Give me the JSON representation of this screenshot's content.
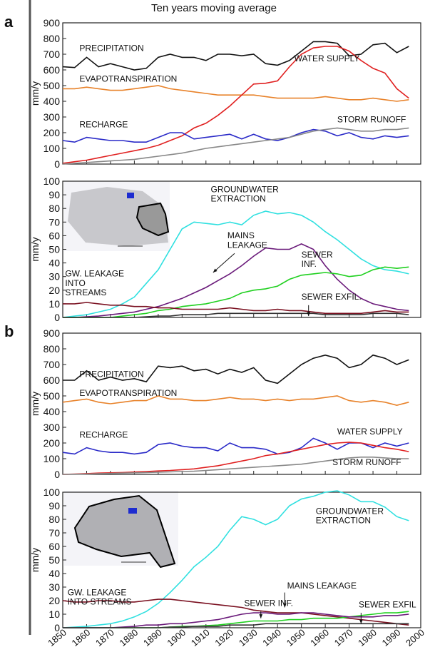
{
  "title": "Ten years moving average",
  "panels": [
    "a",
    "b"
  ],
  "chart_data": [
    {
      "type": "line",
      "ylabel": "mm/y",
      "x": [
        1850,
        1855,
        1860,
        1865,
        1870,
        1875,
        1880,
        1885,
        1890,
        1895,
        1900,
        1905,
        1910,
        1915,
        1920,
        1925,
        1930,
        1935,
        1940,
        1945,
        1950,
        1955,
        1960,
        1965,
        1970,
        1975,
        1980,
        1985,
        1990,
        1995
      ],
      "xlim": [
        1850,
        2000
      ],
      "xticks": [
        1850,
        1860,
        1870,
        1880,
        1890,
        1900,
        1910,
        1920,
        1930,
        1940,
        1950,
        1960,
        1970,
        1980,
        1990,
        2000
      ],
      "ylim": [
        0,
        900
      ],
      "yticks": [
        0,
        100,
        200,
        300,
        400,
        500,
        600,
        700,
        800,
        900
      ],
      "series": [
        {
          "name": "PRECIPITATION",
          "color": "#111111",
          "values": [
            620,
            615,
            680,
            620,
            640,
            620,
            600,
            610,
            680,
            700,
            680,
            680,
            660,
            700,
            700,
            690,
            700,
            640,
            630,
            660,
            720,
            780,
            780,
            770,
            690,
            700,
            760,
            770,
            710,
            750
          ]
        },
        {
          "name": "EVAPOTRANSPIRATION",
          "color": "#e8822a",
          "values": [
            480,
            480,
            490,
            480,
            470,
            470,
            480,
            490,
            500,
            480,
            470,
            460,
            450,
            440,
            440,
            440,
            440,
            430,
            420,
            420,
            420,
            420,
            430,
            420,
            410,
            410,
            420,
            410,
            400,
            410
          ]
        },
        {
          "name": "WATER SUPPLY",
          "color": "#e02020",
          "values": [
            5,
            15,
            25,
            40,
            55,
            70,
            85,
            100,
            120,
            150,
            180,
            230,
            260,
            310,
            370,
            440,
            510,
            515,
            530,
            620,
            700,
            740,
            750,
            750,
            720,
            660,
            610,
            580,
            480,
            420
          ]
        },
        {
          "name": "RECHARGE",
          "color": "#2a2ac8",
          "values": [
            150,
            140,
            170,
            160,
            150,
            150,
            140,
            140,
            170,
            200,
            200,
            160,
            170,
            180,
            190,
            160,
            190,
            160,
            150,
            170,
            200,
            220,
            210,
            180,
            200,
            170,
            160,
            180,
            170,
            180
          ]
        },
        {
          "name": "STORM RUNOFF",
          "color": "#888888",
          "values": [
            0,
            5,
            10,
            15,
            20,
            25,
            30,
            40,
            50,
            60,
            70,
            85,
            100,
            110,
            120,
            130,
            140,
            150,
            160,
            170,
            190,
            210,
            220,
            230,
            220,
            210,
            210,
            220,
            220,
            230
          ]
        }
      ]
    },
    {
      "type": "line",
      "ylabel": "mm/y",
      "x": [
        1850,
        1855,
        1860,
        1865,
        1870,
        1875,
        1880,
        1885,
        1890,
        1895,
        1900,
        1905,
        1910,
        1915,
        1920,
        1925,
        1930,
        1935,
        1940,
        1945,
        1950,
        1955,
        1960,
        1965,
        1970,
        1975,
        1980,
        1985,
        1990,
        1995
      ],
      "xlim": [
        1850,
        2000
      ],
      "xticks": [
        1850,
        1860,
        1870,
        1880,
        1890,
        1900,
        1910,
        1920,
        1930,
        1940,
        1950,
        1960,
        1970,
        1980,
        1990,
        2000
      ],
      "ylim": [
        0,
        100
      ],
      "yticks": [
        0,
        10,
        20,
        30,
        40,
        50,
        60,
        70,
        80,
        90,
        100
      ],
      "series": [
        {
          "name": "GROUNDWATER\nEXTRACTION",
          "color": "#30e0e0",
          "values": [
            0,
            1,
            2,
            4,
            6,
            10,
            15,
            25,
            35,
            50,
            65,
            70,
            69,
            68,
            70,
            68,
            75,
            78,
            76,
            77,
            75,
            70,
            63,
            57,
            50,
            43,
            38,
            35,
            34,
            32
          ]
        },
        {
          "name": "MAINS\nLEAKAGE",
          "color": "#6a1a7a",
          "values": [
            0,
            0,
            0.5,
            1,
            2,
            3,
            4,
            6,
            8,
            11,
            14,
            18,
            22,
            27,
            32,
            38,
            45,
            51,
            50,
            50,
            54,
            50,
            38,
            28,
            20,
            14,
            10,
            8,
            6,
            5
          ]
        },
        {
          "name": "SEWER\nINF.",
          "color": "#20d020",
          "values": [
            0,
            0,
            0,
            0,
            0,
            1,
            2,
            3,
            5,
            6,
            8,
            9,
            10,
            12,
            14,
            18,
            20,
            21,
            23,
            28,
            31,
            32,
            33,
            32,
            30,
            31,
            35,
            37,
            36,
            37
          ]
        },
        {
          "name": "GW. LEAKAGE\nINTO\nSTREAMS",
          "color": "#7a1020",
          "values": [
            10,
            10,
            11,
            10,
            9,
            9,
            8,
            8,
            7,
            7,
            6,
            6,
            6,
            6,
            7,
            6,
            5,
            5,
            6,
            5,
            5,
            4,
            3,
            3,
            3,
            3,
            4,
            5,
            4,
            4
          ]
        },
        {
          "name": "SEWER EXFIL.",
          "color": "#333333",
          "values": [
            0,
            0,
            0,
            0,
            0,
            0,
            0,
            0.5,
            1,
            1,
            2,
            2,
            2,
            3,
            3,
            3,
            3,
            3,
            3,
            3,
            3,
            3,
            2,
            2,
            2,
            2,
            3,
            3,
            3,
            2
          ]
        }
      ]
    },
    {
      "type": "line",
      "ylabel": "mm/y",
      "x": [
        1850,
        1855,
        1860,
        1865,
        1870,
        1875,
        1880,
        1885,
        1890,
        1895,
        1900,
        1905,
        1910,
        1915,
        1920,
        1925,
        1930,
        1935,
        1940,
        1945,
        1950,
        1955,
        1960,
        1965,
        1970,
        1975,
        1980,
        1985,
        1990,
        1995
      ],
      "xlim": [
        1850,
        2000
      ],
      "xticks": [
        1850,
        1860,
        1870,
        1880,
        1890,
        1900,
        1910,
        1920,
        1930,
        1940,
        1950,
        1960,
        1970,
        1980,
        1990,
        2000
      ],
      "ylim": [
        0,
        900
      ],
      "yticks": [
        0,
        100,
        200,
        300,
        400,
        500,
        600,
        700,
        800,
        900
      ],
      "series": [
        {
          "name": "PRECIPITATION",
          "color": "#111111",
          "values": [
            600,
            600,
            660,
            600,
            620,
            600,
            610,
            590,
            690,
            680,
            690,
            660,
            670,
            640,
            670,
            650,
            680,
            600,
            580,
            640,
            700,
            740,
            760,
            740,
            680,
            700,
            760,
            740,
            700,
            730
          ]
        },
        {
          "name": "EVAPOTRANSPIRATION",
          "color": "#e8822a",
          "values": [
            460,
            470,
            480,
            460,
            450,
            460,
            470,
            470,
            500,
            480,
            480,
            470,
            470,
            480,
            490,
            480,
            480,
            470,
            480,
            470,
            480,
            480,
            490,
            500,
            470,
            460,
            470,
            460,
            440,
            460
          ]
        },
        {
          "name": "RECHARGE",
          "color": "#2a2ac8",
          "values": [
            140,
            130,
            170,
            150,
            140,
            140,
            130,
            140,
            190,
            200,
            180,
            170,
            170,
            150,
            200,
            170,
            170,
            160,
            130,
            140,
            170,
            230,
            200,
            160,
            200,
            200,
            170,
            200,
            180,
            200
          ]
        },
        {
          "name": "WATER SUPPLY",
          "color": "#e02020",
          "values": [
            0,
            2,
            5,
            8,
            10,
            12,
            15,
            18,
            22,
            25,
            30,
            35,
            45,
            55,
            70,
            85,
            100,
            120,
            130,
            145,
            160,
            175,
            190,
            200,
            205,
            200,
            185,
            170,
            160,
            145
          ]
        },
        {
          "name": "STORM RUNOFF",
          "color": "#888888",
          "values": [
            0,
            1,
            2,
            4,
            6,
            8,
            10,
            12,
            14,
            16,
            18,
            20,
            25,
            30,
            35,
            40,
            45,
            50,
            55,
            60,
            65,
            75,
            85,
            95,
            105,
            110,
            110,
            105,
            100,
            100
          ]
        }
      ]
    },
    {
      "type": "line",
      "ylabel": "mm/y",
      "x": [
        1850,
        1855,
        1860,
        1865,
        1870,
        1875,
        1880,
        1885,
        1890,
        1895,
        1900,
        1905,
        1910,
        1915,
        1920,
        1925,
        1930,
        1935,
        1940,
        1945,
        1950,
        1955,
        1960,
        1965,
        1970,
        1975,
        1980,
        1985,
        1990,
        1995
      ],
      "xlim": [
        1850,
        2000
      ],
      "xticks": [
        1850,
        1860,
        1870,
        1880,
        1890,
        1900,
        1910,
        1920,
        1930,
        1940,
        1950,
        1960,
        1970,
        1980,
        1990,
        2000
      ],
      "ylim": [
        0,
        100
      ],
      "yticks": [
        0,
        10,
        20,
        30,
        40,
        50,
        60,
        70,
        80,
        90,
        100
      ],
      "series": [
        {
          "name": "GROUNDWATER\nEXTRACTION",
          "color": "#30e0e0",
          "values": [
            0,
            0.5,
            1,
            2,
            3,
            5,
            8,
            12,
            18,
            26,
            35,
            45,
            52,
            60,
            72,
            82,
            80,
            76,
            80,
            90,
            95,
            97,
            100,
            101,
            98,
            93,
            93,
            89,
            82,
            79
          ]
        },
        {
          "name": "GW. LEAKAGE\nINTO STREAMS",
          "color": "#7a1020",
          "values": [
            20,
            19,
            19,
            20,
            20,
            19,
            19,
            20,
            21,
            21,
            20,
            19,
            18,
            17,
            16,
            15,
            13,
            12,
            11,
            11,
            11,
            10,
            9,
            8,
            7,
            6,
            5,
            4,
            3,
            2
          ]
        },
        {
          "name": "SEWER INF.",
          "color": "#20d020",
          "values": [
            0,
            0,
            0,
            0,
            0,
            0,
            0,
            0,
            0,
            0.5,
            1,
            1,
            1.5,
            2,
            3,
            4,
            5,
            5,
            5,
            6,
            6,
            7,
            7,
            7,
            8,
            9,
            10,
            11,
            11,
            12
          ]
        },
        {
          "name": "MAINS LEAKAGE",
          "color": "#6a1a7a",
          "values": [
            0,
            0,
            0,
            0,
            0,
            0.5,
            1,
            2,
            2,
            3,
            3,
            4,
            5,
            6,
            8,
            10,
            11,
            11,
            10,
            10,
            11,
            11,
            10,
            9,
            8,
            8,
            8,
            9,
            9,
            10
          ]
        },
        {
          "name": "SEWER EXFIL",
          "color": "#333333",
          "values": [
            0,
            0,
            0,
            0,
            0,
            0,
            0,
            0,
            0,
            0.5,
            0.5,
            1,
            1,
            1,
            2,
            2,
            2,
            3,
            3,
            3,
            3,
            3,
            3,
            3,
            3,
            3,
            3,
            3,
            3,
            3
          ]
        }
      ]
    }
  ]
}
